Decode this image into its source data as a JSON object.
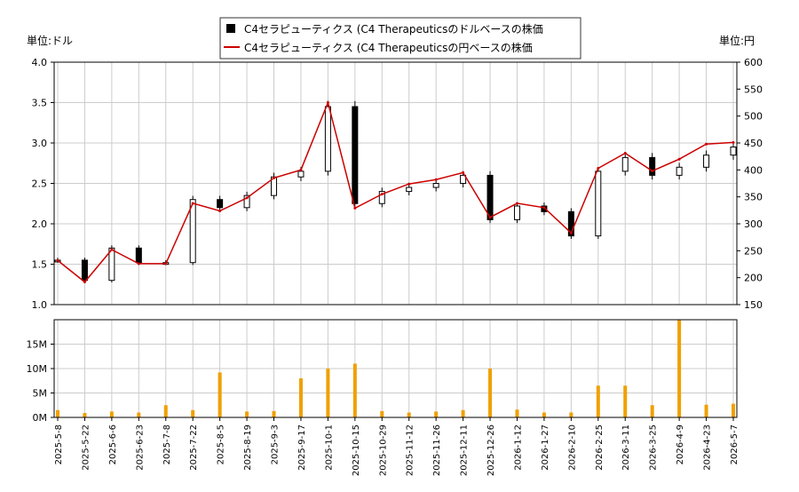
{
  "legend": {
    "usd_label": "C4セラピューティクス (C4 Therapeuticsのドルベースの株価",
    "jpy_label": "C4セラピューティクス (C4 Therapeuticsの円ベースの株価"
  },
  "axis_units": {
    "left": "単位:ドル",
    "right": "単位:円"
  },
  "colors": {
    "usd_candle": "#000000",
    "jpy_line": "#cc0000",
    "volume_bar": "#f0a000",
    "grid": "#cccccc"
  },
  "chart_data": [
    {
      "type": "line",
      "title": "",
      "x": [
        "2025-5-8",
        "2025-5-22",
        "2025-6-6",
        "2025-6-23",
        "2025-7-8",
        "2025-7-22",
        "2025-8-5",
        "2025-8-19",
        "2025-9-3",
        "2025-9-17",
        "2025-10-1",
        "2025-10-15",
        "2025-10-29",
        "2025-11-12",
        "2025-11-26",
        "2025-12-11",
        "2025-12-26",
        "2026-1-12",
        "2026-1-27",
        "2026-2-10",
        "2026-2-25",
        "2026-3-11",
        "2026-3-25",
        "2026-4-9",
        "2026-4-23",
        "2026-5-7"
      ],
      "xtick_labels": [
        "2025-5-8",
        "2025-5-22",
        "2025-6-6",
        "2025-6-23",
        "2025-7-8",
        "2025-7-22",
        "2025-8-5",
        "2025-8-19",
        "2025-9-3",
        "2025-9-17",
        "2025-10-1",
        "2025-10-15",
        "2025-10-29",
        "2025-11-12",
        "2025-11-26",
        "2025-12-11",
        "2025-12-26",
        "2026-1-12",
        "2026-1-27",
        "2026-2-10",
        "2026-2-25",
        "2026-3-11",
        "2026-3-25",
        "2026-4-9",
        "2026-4-23",
        "2026-5-7"
      ],
      "left_ylim": [
        1.0,
        4.0
      ],
      "left_yticks": [
        "1.0",
        "1.5",
        "2.0",
        "2.5",
        "3.0",
        "3.5",
        "4.0"
      ],
      "right_ylim": [
        150,
        600
      ],
      "right_yticks": [
        "150",
        "200",
        "250",
        "300",
        "350",
        "400",
        "450",
        "500",
        "550",
        "600"
      ],
      "grid": true,
      "legend_position": "top-center",
      "series": [
        {
          "name": "C4セラピューティクス (C4 Therapeuticsのドルベースの株価",
          "axis": "left",
          "values": [
            1.55,
            1.3,
            1.7,
            1.52,
            1.52,
            2.3,
            2.2,
            2.35,
            2.58,
            2.65,
            3.45,
            2.25,
            2.4,
            2.45,
            2.5,
            2.6,
            2.05,
            2.22,
            2.15,
            1.85,
            2.65,
            2.82,
            2.6,
            2.7,
            2.85,
            2.95
          ]
        },
        {
          "name": "C4セラピューティクス (C4 Therapeuticsの円ベースの株価",
          "axis": "right",
          "values": [
            232,
            192,
            252,
            226,
            226,
            338,
            324,
            348,
            385,
            400,
            525,
            329,
            355,
            374,
            382,
            395,
            312,
            338,
            330,
            283,
            403,
            431,
            398,
            420,
            448,
            451
          ]
        }
      ]
    },
    {
      "type": "bar",
      "title": "",
      "x": [
        "2025-5-8",
        "2025-5-22",
        "2025-6-6",
        "2025-6-23",
        "2025-7-8",
        "2025-7-22",
        "2025-8-5",
        "2025-8-19",
        "2025-9-3",
        "2025-9-17",
        "2025-10-1",
        "2025-10-15",
        "2025-10-29",
        "2025-11-12",
        "2025-11-26",
        "2025-12-11",
        "2025-12-26",
        "2026-1-12",
        "2026-1-27",
        "2026-2-10",
        "2026-2-25",
        "2026-3-11",
        "2026-3-25",
        "2026-4-9",
        "2026-4-23",
        "2026-5-7"
      ],
      "ylim": [
        0,
        20000000
      ],
      "yticks": [
        "0M",
        "5M",
        "10M",
        "15M"
      ],
      "series": [
        {
          "name": "",
          "values": [
            1500000,
            900000,
            1200000,
            1000000,
            2500000,
            1500000,
            9200000,
            1200000,
            1300000,
            8000000,
            10000000,
            11000000,
            1300000,
            1000000,
            1200000,
            1500000,
            10000000,
            1600000,
            1000000,
            1000000,
            6500000,
            6500000,
            2500000,
            20000000,
            2600000,
            2800000
          ]
        }
      ]
    }
  ]
}
